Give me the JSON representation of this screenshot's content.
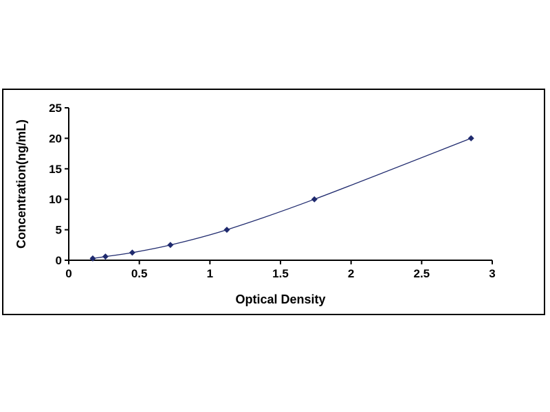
{
  "chart_data": {
    "type": "line",
    "title": "",
    "xlabel": "Optical Density",
    "ylabel": "Concentration(ng/mL)",
    "xlim": [
      0,
      3
    ],
    "ylim": [
      0,
      25
    ],
    "x_ticks": [
      "0",
      "0.5",
      "1",
      "1.5",
      "2",
      "2.5",
      "3"
    ],
    "y_ticks": [
      "0",
      "5",
      "10",
      "15",
      "20",
      "25"
    ],
    "grid": false,
    "legend": "none",
    "marker": "diamond",
    "points": [
      {
        "x": 0.17,
        "y": 0.3
      },
      {
        "x": 0.26,
        "y": 0.6
      },
      {
        "x": 0.45,
        "y": 1.25
      },
      {
        "x": 0.72,
        "y": 2.5
      },
      {
        "x": 1.12,
        "y": 5
      },
      {
        "x": 1.74,
        "y": 10
      },
      {
        "x": 2.85,
        "y": 20
      }
    ],
    "colors": {
      "line": "#1f2a6e",
      "marker": "#1f2a6e",
      "axis": "#000000",
      "frame_border": "#000000",
      "background": "#ffffff"
    }
  }
}
